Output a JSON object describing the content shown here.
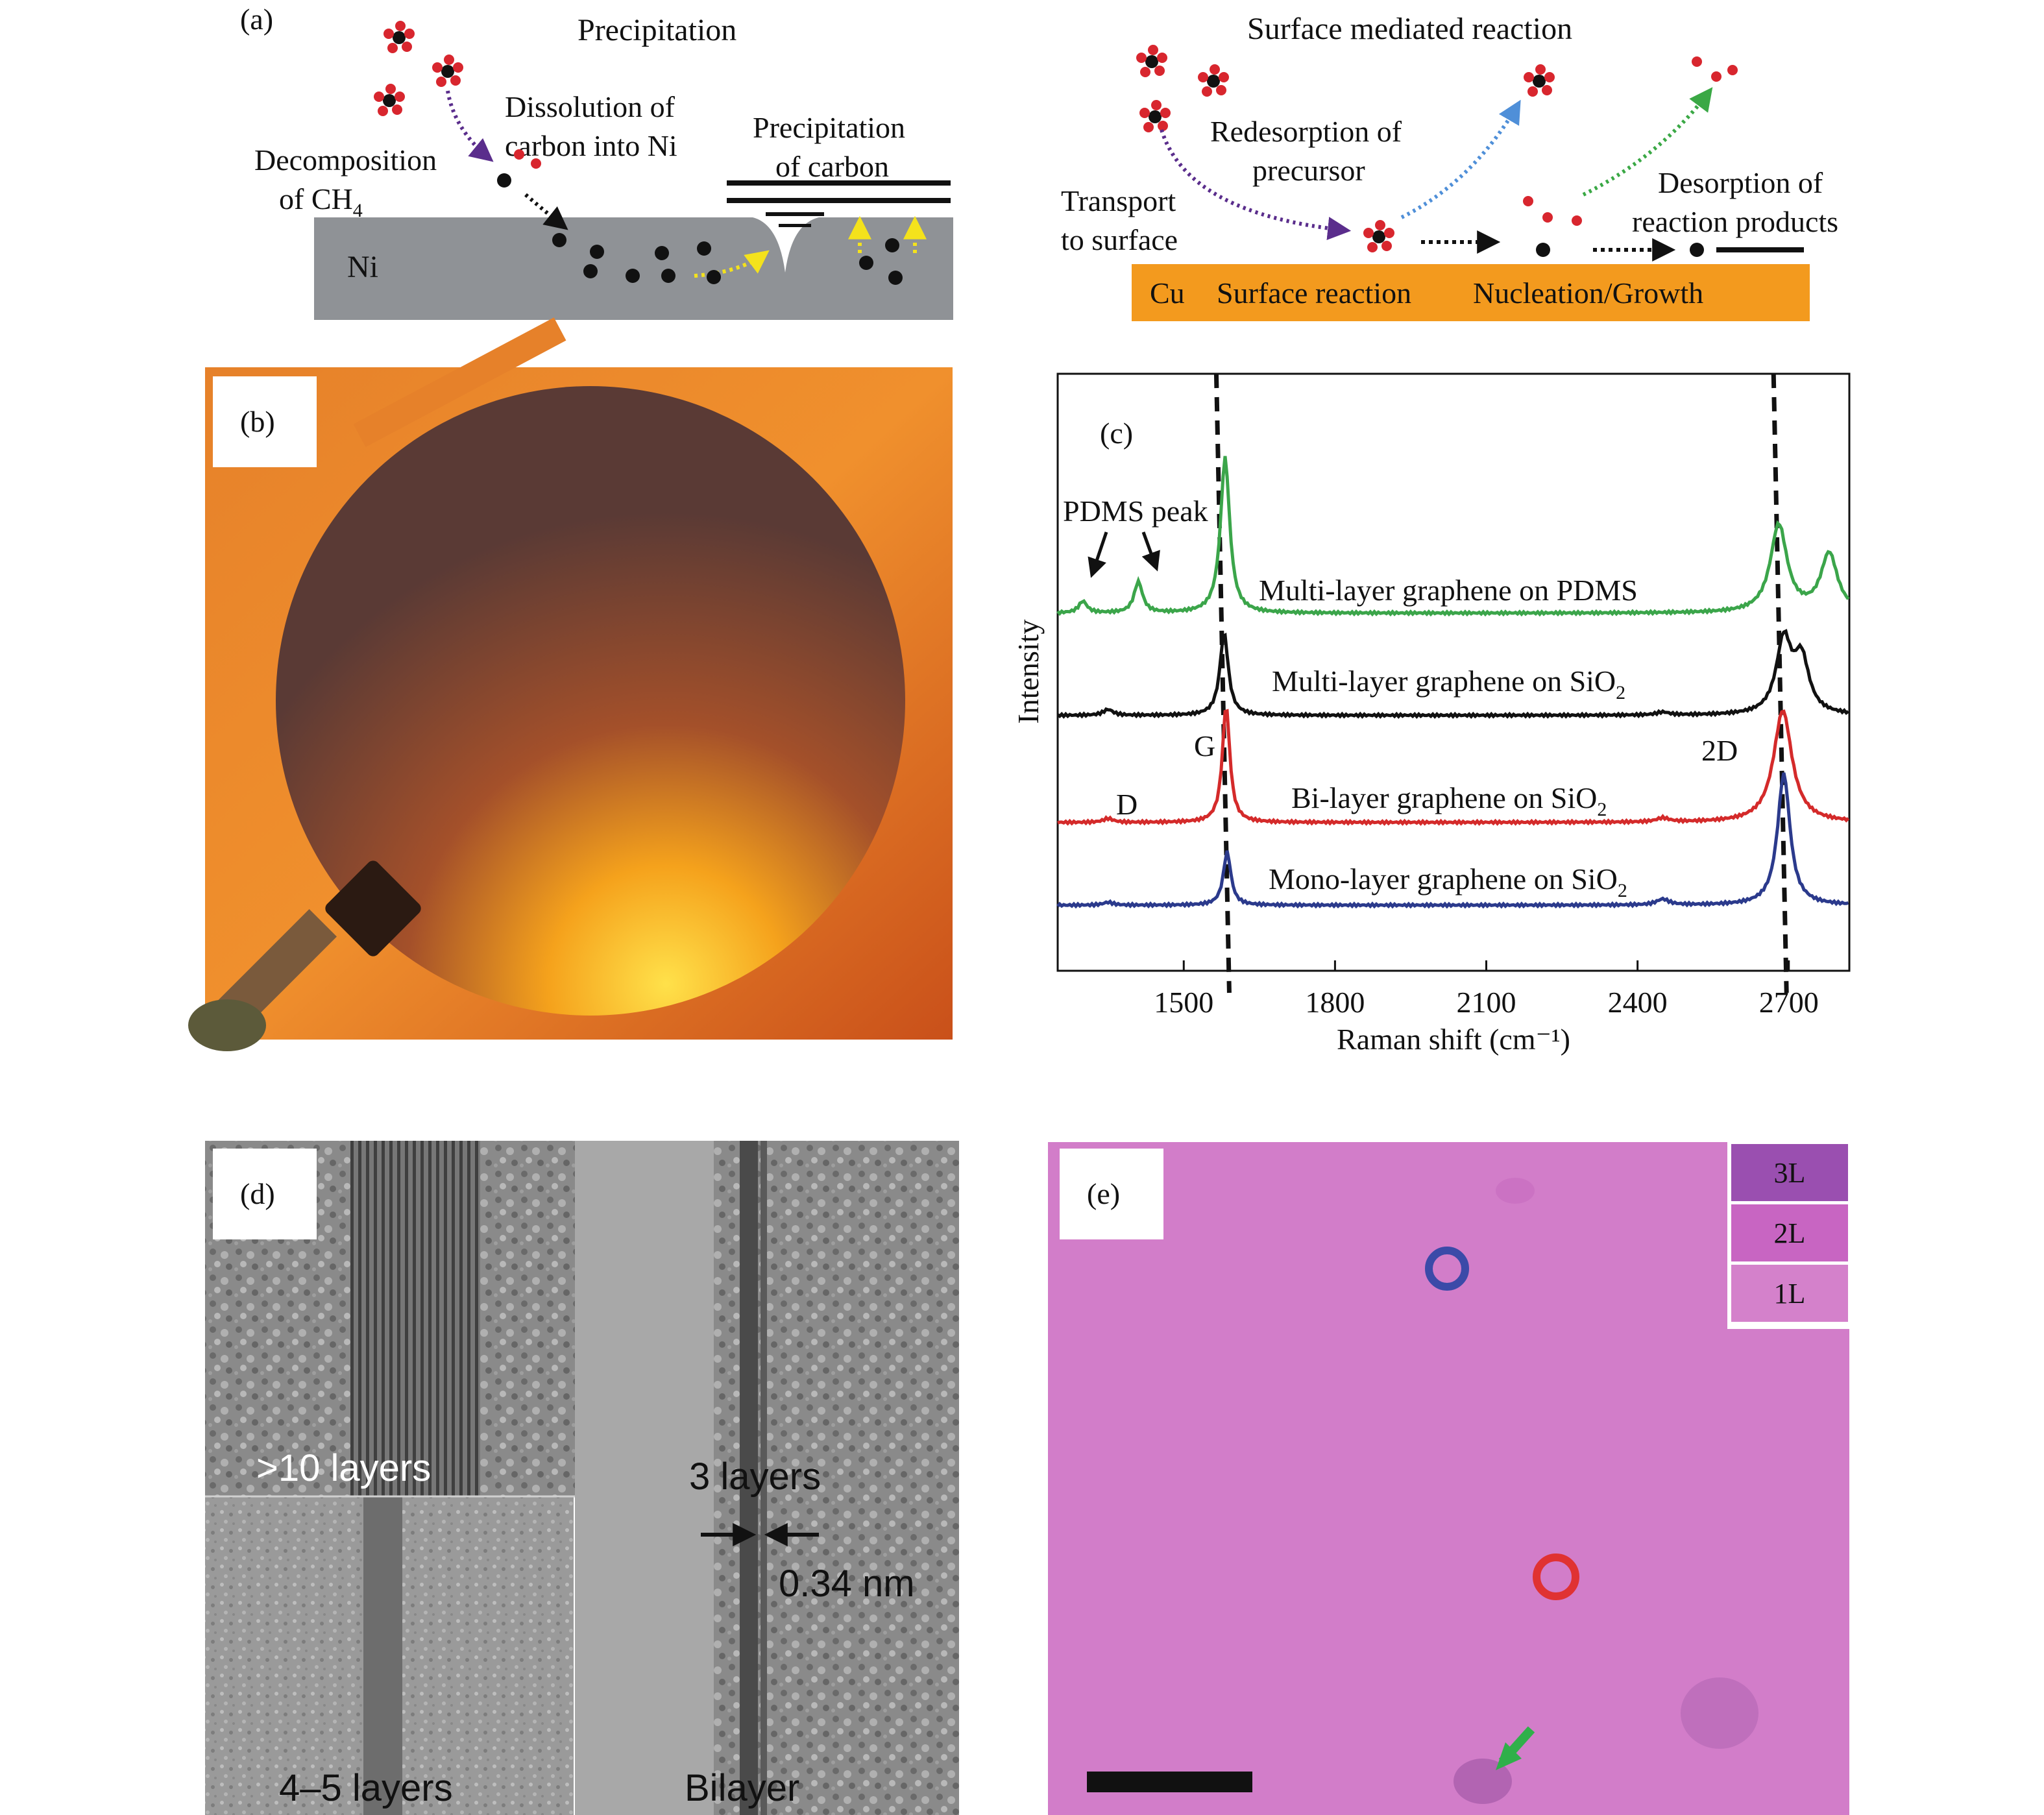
{
  "panel_a": {
    "tag": "(a)",
    "left": {
      "title": "Precipitation",
      "dissolution": [
        "Dissolution of",
        "carbon into Ni"
      ],
      "precipitation_of_carbon": [
        "Precipitation",
        "of carbon"
      ],
      "decomposition": [
        "Decomposition",
        "of CH",
        "4"
      ],
      "substrate": "Ni"
    },
    "right": {
      "title": "Surface mediated reaction",
      "redesorption": [
        "Redesorption of",
        "precursor"
      ],
      "desorption": [
        "Desorption of",
        "reaction products"
      ],
      "transport": [
        "Transport",
        "to surface"
      ],
      "substrate": "Cu",
      "surface_reaction": "Surface reaction",
      "nucleation": "Nucleation/Growth"
    },
    "colors": {
      "ni_substrate": "#8f9296",
      "cu_substrate": "#f39a1e",
      "oxygen_atom": "#d8262e",
      "carbon_atom": "#111111",
      "arrow_purple": "#5a2d8c",
      "arrow_blue": "#4f8fd8",
      "arrow_green": "#3aa845",
      "arrow_yellow": "#f4e21c"
    }
  },
  "panel_b": {
    "tag": "(b)"
  },
  "panel_c": {
    "tag": "(c)",
    "annotations": {
      "pdms_peak": "PDMS peak",
      "g": "G",
      "d": "D",
      "two_d": "2D"
    },
    "chart_data": {
      "type": "line",
      "xlabel": "Raman shift (cm⁻¹)",
      "ylabel": "Intensity",
      "xlim": [
        1250,
        2820
      ],
      "xticks": [
        1500,
        1800,
        2100,
        2400,
        2700
      ],
      "dashed_reference_lines": [
        1580,
        2680
      ],
      "series": [
        {
          "name": "Multi-layer graphene on PDMS",
          "label_main": "Multi-layer graphene on PDMS",
          "label_sub": "",
          "color": "#3ba54a",
          "offset": 3.3,
          "peaks": [
            {
              "x": 1300,
              "h": 0.12,
              "w": 10
            },
            {
              "x": 1410,
              "h": 0.32,
              "w": 10
            },
            {
              "x": 1582,
              "h": 1.6,
              "w": 11
            },
            {
              "x": 2680,
              "h": 0.9,
              "w": 20
            },
            {
              "x": 2780,
              "h": 0.6,
              "w": 20
            }
          ]
        },
        {
          "name": "Multi-layer graphene on SiO2",
          "label_main": "Multi-layer graphene on SiO",
          "label_sub": "2",
          "color": "#111111",
          "offset": 2.25,
          "peaks": [
            {
              "x": 1350,
              "h": 0.06,
              "w": 12
            },
            {
              "x": 1580,
              "h": 0.85,
              "w": 10
            },
            {
              "x": 2450,
              "h": 0.03,
              "w": 15
            },
            {
              "x": 2690,
              "h": 0.75,
              "w": 18
            },
            {
              "x": 2725,
              "h": 0.55,
              "w": 18
            }
          ]
        },
        {
          "name": "Bi-layer graphene on SiO2",
          "label_main": "Bi-layer graphene on SiO",
          "label_sub": "2",
          "color": "#d42a2a",
          "offset": 1.15,
          "peaks": [
            {
              "x": 1350,
              "h": 0.04,
              "w": 12
            },
            {
              "x": 1584,
              "h": 1.2,
              "w": 9
            },
            {
              "x": 2450,
              "h": 0.04,
              "w": 15
            },
            {
              "x": 2688,
              "h": 1.15,
              "w": 22
            }
          ]
        },
        {
          "name": "Mono-layer graphene on SiO2",
          "label_main": "Mono-layer graphene on SiO",
          "label_sub": "2",
          "color": "#2b3a8c",
          "offset": 0.3,
          "peaks": [
            {
              "x": 1350,
              "h": 0.03,
              "w": 12
            },
            {
              "x": 1586,
              "h": 0.55,
              "w": 9
            },
            {
              "x": 2450,
              "h": 0.06,
              "w": 15
            },
            {
              "x": 2690,
              "h": 1.35,
              "w": 15
            }
          ]
        }
      ]
    }
  },
  "panel_d": {
    "tag": "(d)",
    "labels": {
      "top_left": ">10 layers",
      "bottom_left": "4–5 layers",
      "right_top": "3 layers",
      "spacing": "0.34 nm",
      "right_bottom": "Bilayer"
    }
  },
  "panel_e": {
    "tag": "(e)",
    "legend": [
      {
        "label": "3L",
        "color": "#9a4fb0"
      },
      {
        "label": "2L",
        "color": "#c865c2"
      },
      {
        "label": "1L",
        "color": "#d481cb"
      }
    ],
    "background_color": "#d27dc9"
  }
}
